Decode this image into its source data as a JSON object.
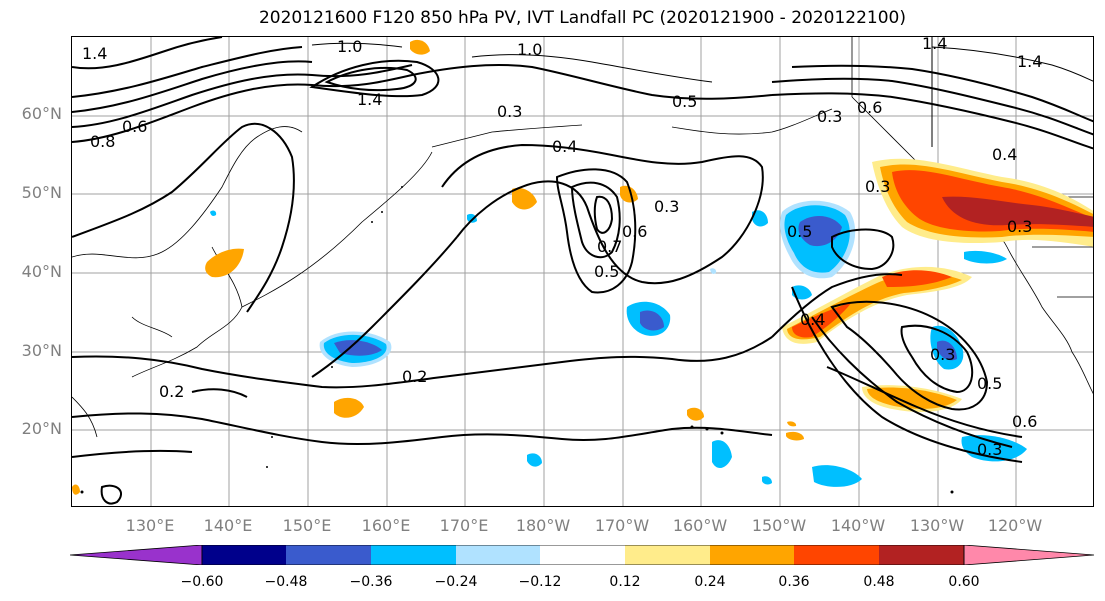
{
  "title": "2020121600 F120 850 hPa PV, IVT Landfall PC (2020121900 - 2020122100)",
  "latitude_labels": [
    "60°N",
    "50°N",
    "40°N",
    "30°N",
    "20°N"
  ],
  "longitude_labels": [
    "130°E",
    "140°E",
    "150°E",
    "160°E",
    "170°E",
    "180°W",
    "170°W",
    "160°W",
    "150°W",
    "140°W",
    "130°W",
    "120°W"
  ],
  "contour_labels": [
    "1.4",
    "1.0",
    "1.0",
    "1.4",
    "1.4",
    "1.4",
    "0.3",
    "0.4",
    "0.3",
    "0.5",
    "0.6",
    "0.6",
    "0.4",
    "0.8",
    "0.3",
    "0.2",
    "0.2",
    "0.7",
    "0.6",
    "0.5",
    "0.3",
    "0.4",
    "0.5",
    "0.3",
    "0.5",
    "0.6",
    "0.3",
    "0.3"
  ],
  "colorbar": {
    "ticks": [
      "−0.60",
      "−0.48",
      "−0.36",
      "−0.24",
      "−0.12",
      "0.12",
      "0.24",
      "0.36",
      "0.48",
      "0.60"
    ],
    "colors": [
      "#9932cc",
      "#00008b",
      "#3a5bcd",
      "#00bfff",
      "#b0e2ff",
      "#ffffff",
      "#ffec8b",
      "#ffa500",
      "#ff4500",
      "#b22222",
      "#ff88aa"
    ]
  },
  "fill_colors": {
    "pos_light": "#ffec8b",
    "pos_mid": "#ffa500",
    "pos_high": "#ff4500",
    "pos_max": "#b22222",
    "neg_light": "#b0e2ff",
    "neg_mid": "#00bfff",
    "neg_high": "#3a5bcd"
  }
}
